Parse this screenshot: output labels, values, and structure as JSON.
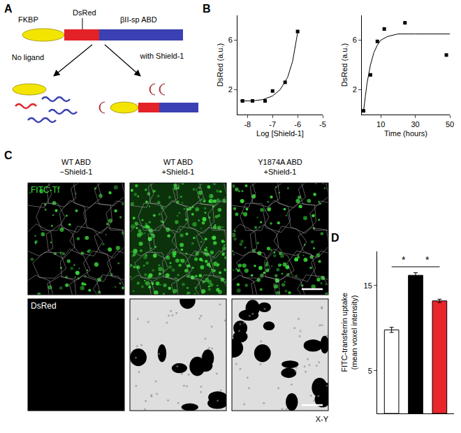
{
  "panel_labels": [
    "A",
    "B",
    "C",
    "D"
  ],
  "diagram": {
    "domains": [
      "FKBP",
      "DsRed",
      "βII-sp ABD"
    ],
    "conditions": [
      "No ligand",
      "with Shield-1"
    ]
  },
  "micrographs": {
    "columns": [
      [
        "WT ABD",
        "−Shield-1"
      ],
      [
        "WT ABD",
        "+Shield-1"
      ],
      [
        "Y1874A ABD",
        "+Shield-1"
      ]
    ],
    "rows": [
      "FITC-Tf",
      "DsRed"
    ],
    "section": "X-Y"
  },
  "chart_data": [
    {
      "type": "scatter",
      "xlabel": "Log [Shield-1]",
      "ylabel": "DsRed (a.u.)",
      "x": [
        -8.2,
        -7.8,
        -7.3,
        -7.0,
        -6.5,
        -6.0
      ],
      "values": [
        1.1,
        1.1,
        1.1,
        1.9,
        2.6,
        6.7
      ],
      "fit": {
        "x": [
          -8.3,
          -7.8,
          -7.4,
          -7.0,
          -6.7,
          -6.4,
          -6.2,
          -6.0
        ],
        "values": [
          1.1,
          1.1,
          1.2,
          1.5,
          2.0,
          3.0,
          4.3,
          6.6
        ]
      },
      "xlim": [
        -8.4,
        -5
      ],
      "ylim": [
        0,
        8
      ],
      "xticks": [
        -8,
        -7,
        -6,
        -5
      ],
      "yticks": [
        2,
        6
      ],
      "color": "#000000",
      "marker": "square",
      "grid": false
    },
    {
      "type": "scatter",
      "xlabel": "Time (hours)",
      "ylabel": "DsRed (a.u.)",
      "x": [
        0,
        4,
        8,
        12,
        24,
        48
      ],
      "values": [
        0.3,
        3.2,
        5.9,
        6.9,
        7.4,
        4.8
      ],
      "fit": {
        "x": [
          0,
          2,
          4,
          6,
          8,
          10,
          14,
          20,
          30,
          50
        ],
        "values": [
          0.3,
          2.5,
          4.0,
          5.0,
          5.6,
          6.0,
          6.3,
          6.5,
          6.5,
          6.5
        ]
      },
      "xlim": [
        -1,
        50
      ],
      "ylim": [
        0,
        8
      ],
      "xticks": [
        10,
        30,
        50
      ],
      "yticks": [
        2,
        6
      ],
      "color": "#000000",
      "marker": "square",
      "grid": false
    },
    {
      "type": "bar",
      "ylabel": [
        "FITC-transferrin uptake",
        "(mean voxel intensity)"
      ],
      "categories": [
        null,
        null,
        null
      ],
      "values": [
        9.8,
        16.2,
        13.2
      ],
      "errors": [
        0.3,
        0.3,
        0.2
      ],
      "colors": [
        "#ffffff",
        "#000000",
        "#e8262b"
      ],
      "ylim": [
        0,
        19
      ],
      "yticks": [
        5,
        15
      ],
      "tick_labels": "y",
      "grid": false,
      "annotations": [
        {
          "text": "*",
          "from": 0,
          "to": 1
        },
        {
          "text": "*",
          "from": 1,
          "to": 2
        }
      ]
    }
  ]
}
